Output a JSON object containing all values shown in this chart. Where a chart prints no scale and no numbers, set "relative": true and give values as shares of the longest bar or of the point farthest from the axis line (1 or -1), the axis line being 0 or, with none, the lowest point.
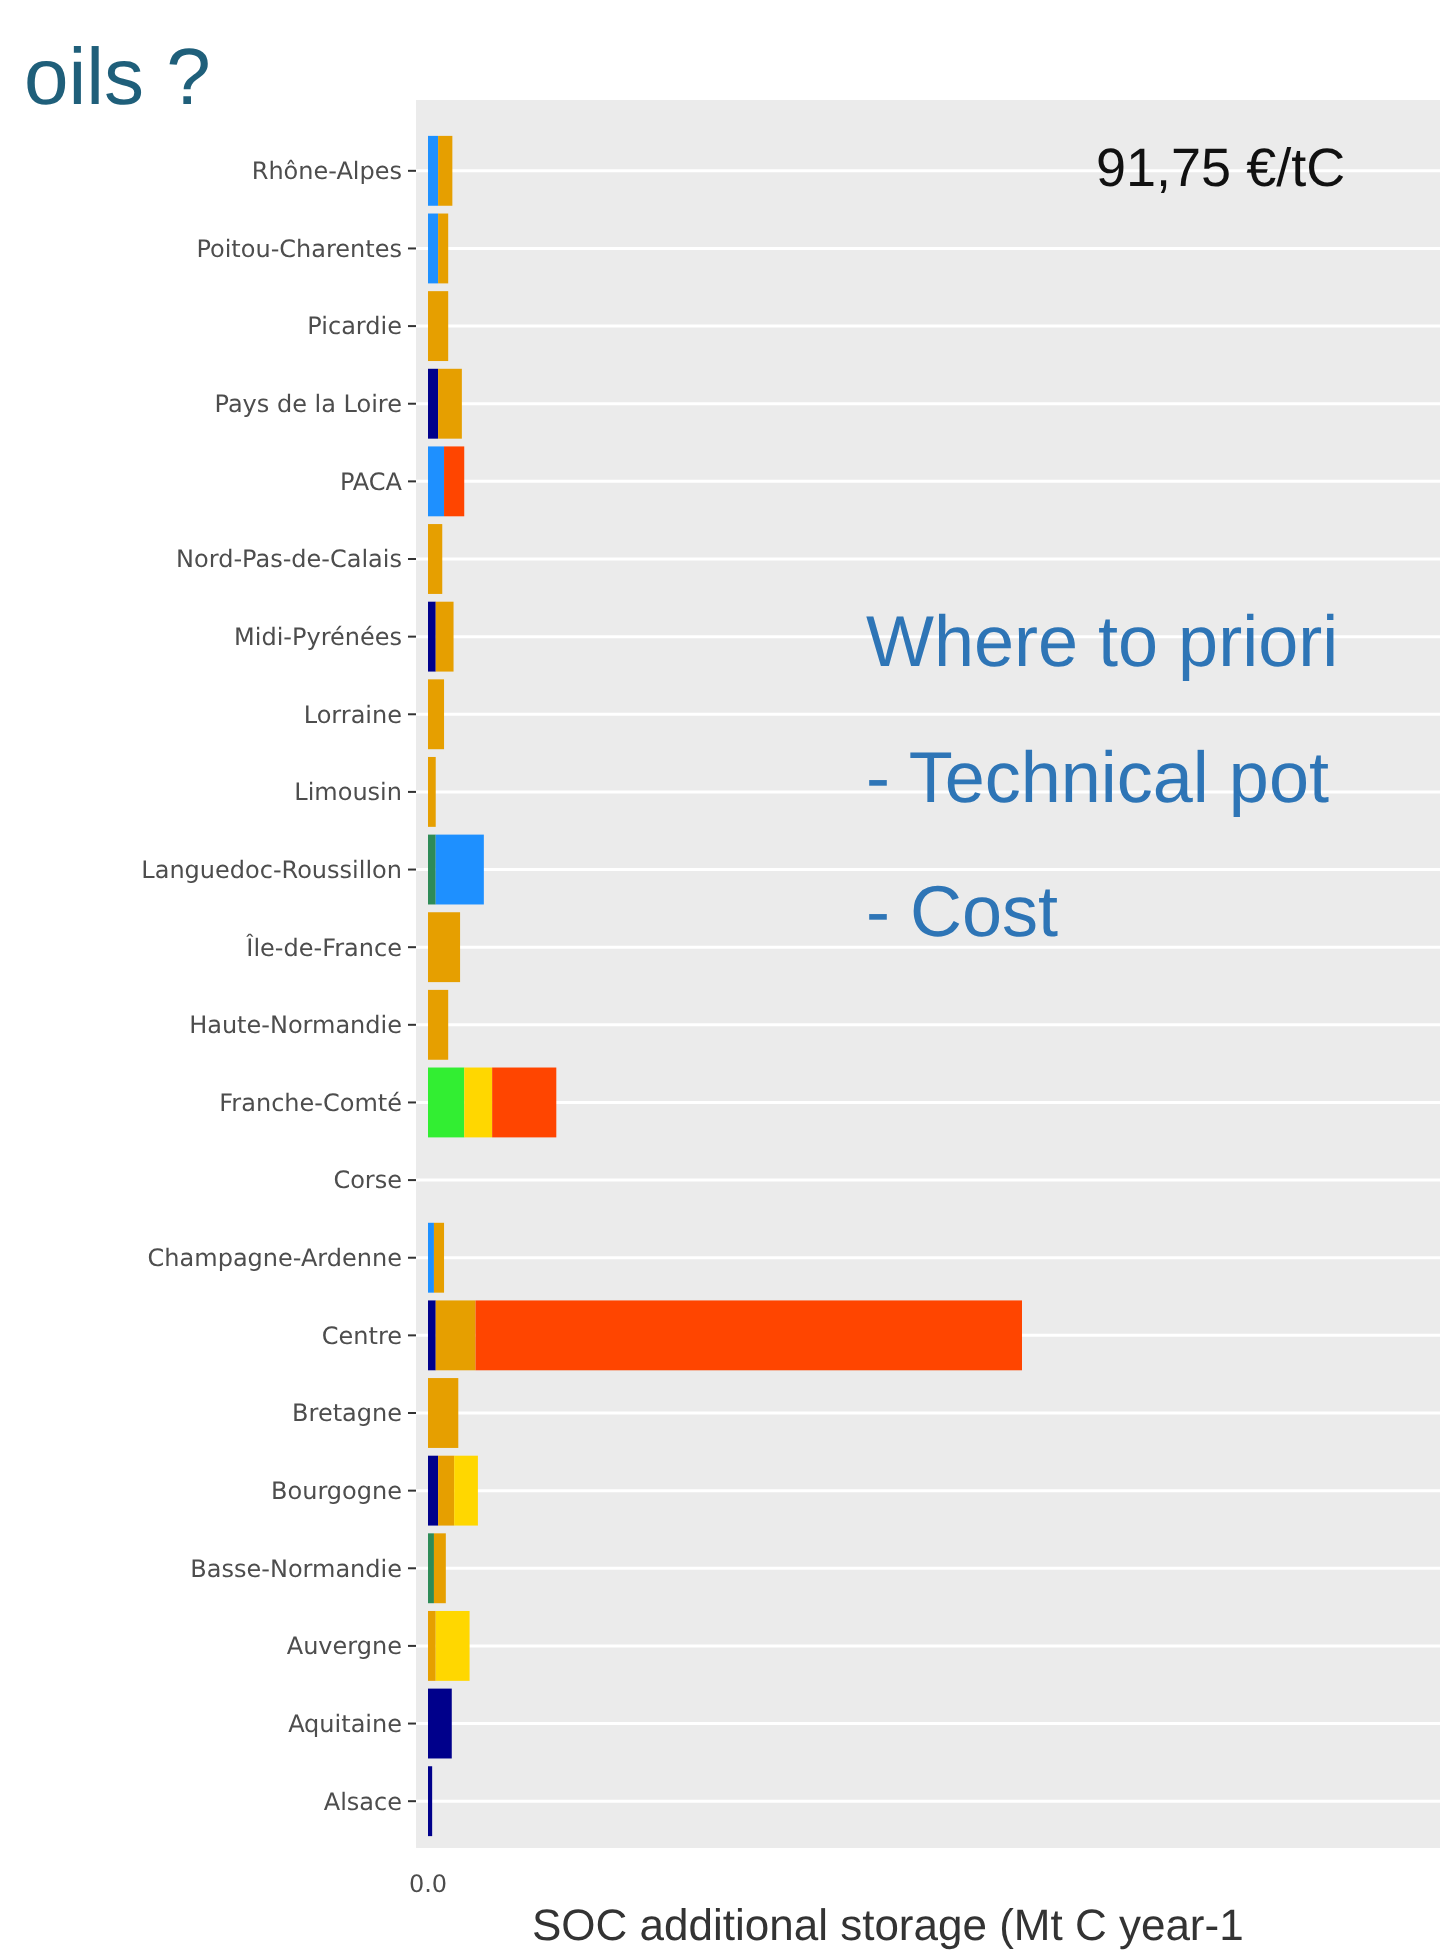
{
  "chart_data": {
    "type": "bar",
    "orientation": "horizontal",
    "stacked": true,
    "relative": true,
    "grid": "y",
    "title": "oils ?",
    "xlabel": "SOC additional storage (Mt C year-1",
    "annotations": [
      "91,75 €/tC",
      "Where to priori",
      "- Technical pot",
      "- Cost",
      "0.0"
    ],
    "categories": [
      "Rhône-Alpes",
      "Poitou-Charentes",
      "Picardie",
      "Pays de la Loire",
      "PACA",
      "Nord-Pas-de-Calais",
      "Midi-Pyrénées",
      "Lorraine",
      "Limousin",
      "Languedoc-Roussillon",
      "Île-de-France",
      "Haute-Normandie",
      "Franche-Comté",
      "Corse",
      "Champagne-Ardenne",
      "Centre",
      "Bretagne",
      "Bourgogne",
      "Basse-Normandie",
      "Auvergne",
      "Aquitaine",
      "Alsace"
    ],
    "series": [
      {
        "color": "#00008b",
        "values": [
          0,
          0,
          0,
          0.017,
          0,
          0,
          0.013,
          0,
          0,
          0,
          0,
          0,
          0,
          0,
          0,
          0.013,
          0,
          0.017,
          0,
          0,
          0.04,
          0.007
        ]
      },
      {
        "color": "#2e8b57",
        "values": [
          0,
          0,
          0,
          0,
          0,
          0,
          0,
          0,
          0,
          0.013,
          0,
          0,
          0,
          0,
          0,
          0,
          0,
          0,
          0.01,
          0,
          0,
          0
        ]
      },
      {
        "color": "#1e90ff",
        "values": [
          0.017,
          0.017,
          0,
          0,
          0.027,
          0,
          0,
          0,
          0,
          0.081,
          0,
          0,
          0,
          0,
          0.01,
          0,
          0,
          0,
          0,
          0,
          0,
          0
        ]
      },
      {
        "color": "#32ee32",
        "values": [
          0,
          0,
          0,
          0,
          0,
          0,
          0,
          0,
          0,
          0,
          0,
          0,
          0.061,
          0,
          0,
          0,
          0,
          0,
          0,
          0,
          0,
          0
        ]
      },
      {
        "color": "#e69f00",
        "values": [
          0.024,
          0.017,
          0.034,
          0.04,
          0,
          0.024,
          0.03,
          0.027,
          0.013,
          0,
          0.054,
          0.034,
          0,
          0,
          0.017,
          0.067,
          0.051,
          0.027,
          0.02,
          0.013,
          0,
          0
        ]
      },
      {
        "color": "#ffd700",
        "values": [
          0,
          0,
          0,
          0,
          0,
          0,
          0,
          0,
          0,
          0,
          0,
          0,
          0.047,
          0,
          0,
          0,
          0,
          0.04,
          0,
          0.057,
          0,
          0
        ]
      },
      {
        "color": "#ff4500",
        "values": [
          0,
          0,
          0,
          0,
          0.034,
          0,
          0,
          0,
          0,
          0,
          0,
          0,
          0.108,
          0,
          0,
          0.92,
          0,
          0,
          0,
          0,
          0,
          0
        ]
      }
    ]
  }
}
